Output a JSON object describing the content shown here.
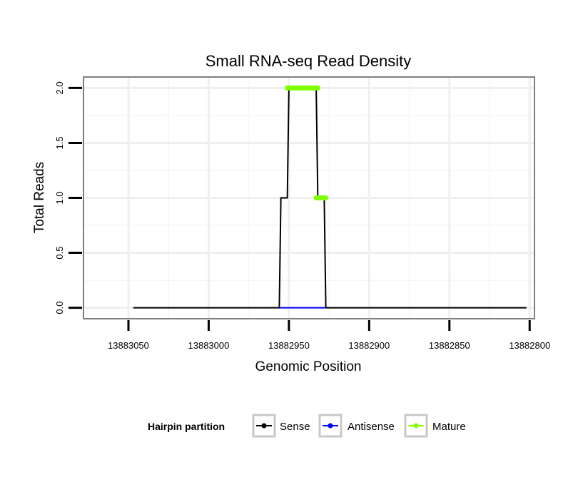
{
  "chart_data": {
    "type": "line",
    "title": "Small RNA-seq Read Density",
    "xlabel": "Genomic Position",
    "ylabel": "Total Reads",
    "x_reversed": true,
    "xlim": [
      13883078,
      13882797
    ],
    "ylim": [
      -0.1,
      2.1
    ],
    "x_ticks": [
      13883050,
      13883000,
      13882950,
      13882900,
      13882850,
      13882800
    ],
    "x_tick_labels": [
      "13883050",
      "13883000",
      "13882950",
      "13882900",
      "13882850",
      "13882800"
    ],
    "y_ticks": [
      0.0,
      0.5,
      1.0,
      1.5,
      2.0
    ],
    "y_tick_labels": [
      "0.0",
      "0.5",
      "1.0",
      "1.5",
      "2.0"
    ],
    "grid": true,
    "legend_position": "bottom",
    "legend_title": "Hairpin partition",
    "series": [
      {
        "name": "Sense",
        "color": "#000000",
        "style": "line",
        "points": [
          [
            13883047,
            0
          ],
          [
            13882956,
            0
          ],
          [
            13882955,
            1
          ],
          [
            13882951,
            1
          ],
          [
            13882950,
            2
          ],
          [
            13882933,
            2
          ],
          [
            13882932,
            1
          ],
          [
            13882928,
            1
          ],
          [
            13882927,
            0
          ],
          [
            13882802,
            0
          ]
        ]
      },
      {
        "name": "Antisense",
        "color": "#0000ff",
        "style": "line",
        "points": [
          [
            13882956,
            0
          ],
          [
            13882927,
            0
          ]
        ]
      },
      {
        "name": "Mature",
        "color": "#7fff00",
        "style": "thick",
        "segments": [
          [
            [
              13882951,
              2
            ],
            [
              13882932,
              2
            ]
          ],
          [
            [
              13882933,
              1
            ],
            [
              13882927,
              1
            ]
          ]
        ]
      }
    ]
  }
}
